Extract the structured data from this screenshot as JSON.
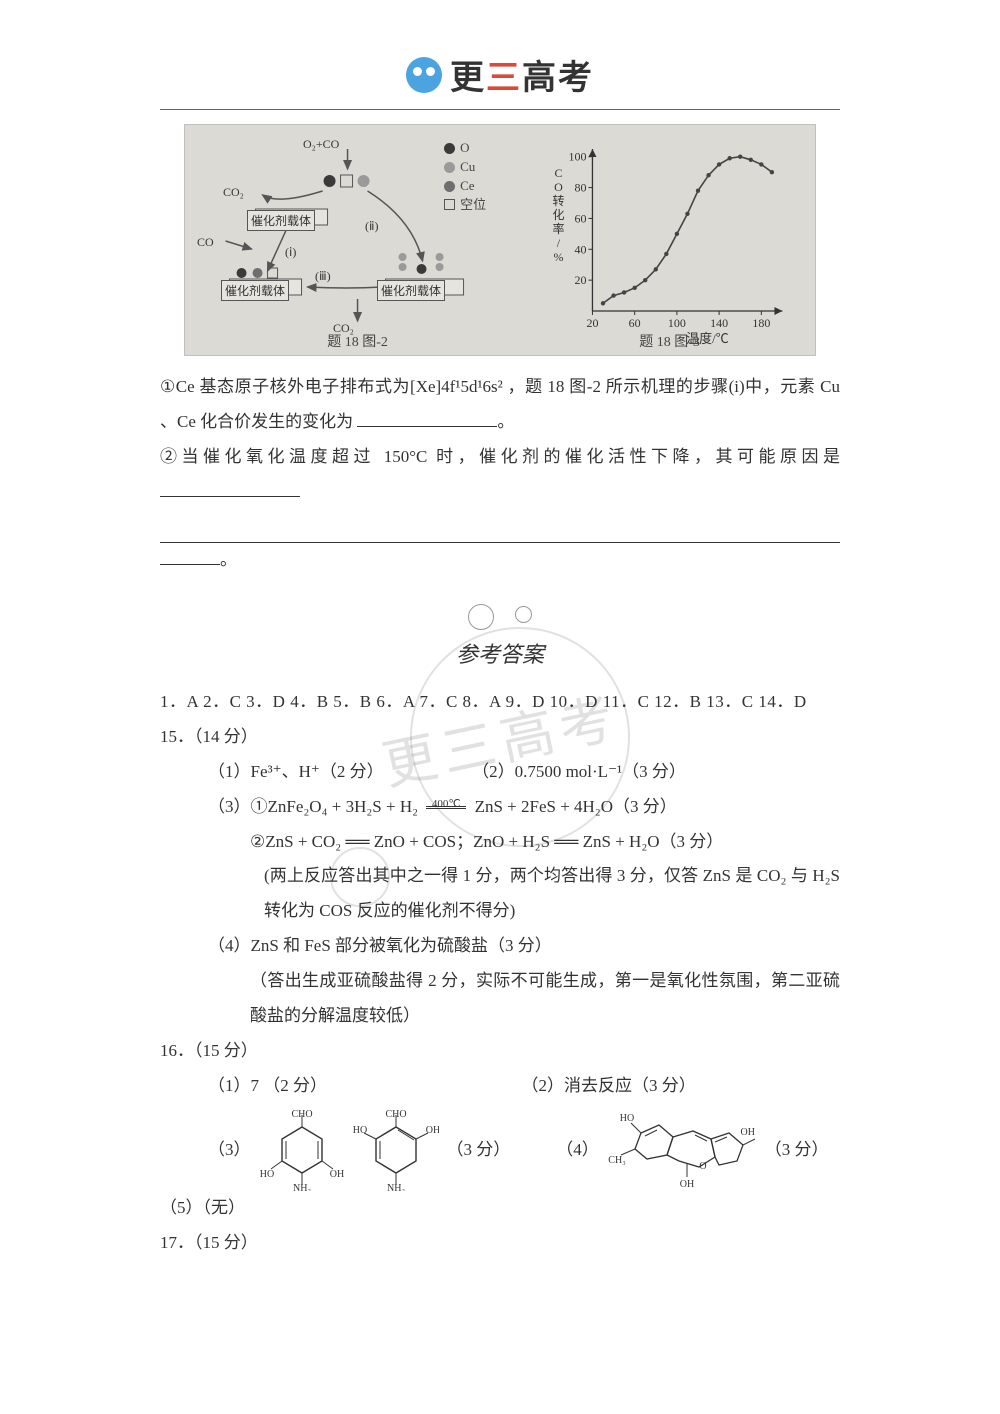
{
  "brand": {
    "text_pre": "更",
    "text_red": "三",
    "text_post": "高考"
  },
  "figure": {
    "left_caption": "题 18  图-2",
    "right_caption": "题 18  图-3",
    "legend": {
      "o": "O",
      "cu": "Cu",
      "ce": "Ce",
      "vac": "空位"
    },
    "labels": {
      "o2co": "O₂+CO",
      "co2_u": "CO₂",
      "co": "CO",
      "co2_b": "CO₂",
      "i": "(ⅰ)",
      "ii": "(ⅱ)",
      "iii": "(ⅲ)",
      "cat": "催化剂载体"
    },
    "chart": {
      "type": "line",
      "ylabel": "CO转化率/%",
      "xlabel": "温度/℃",
      "xlim": [
        20,
        200
      ],
      "ylim": [
        0,
        105
      ],
      "xticks": [
        20,
        60,
        100,
        140,
        180
      ],
      "yticks": [
        20,
        40,
        60,
        80,
        100
      ],
      "points": [
        [
          30,
          5
        ],
        [
          40,
          10
        ],
        [
          50,
          12
        ],
        [
          60,
          15
        ],
        [
          70,
          20
        ],
        [
          80,
          27
        ],
        [
          90,
          37
        ],
        [
          100,
          50
        ],
        [
          110,
          63
        ],
        [
          120,
          78
        ],
        [
          130,
          88
        ],
        [
          140,
          95
        ],
        [
          150,
          99
        ],
        [
          160,
          100
        ],
        [
          170,
          98
        ],
        [
          180,
          95
        ],
        [
          190,
          90
        ]
      ],
      "line_color": "#444444",
      "axis_color": "#333333",
      "background_color": "#dcdad4",
      "fontsize_axis": 12
    }
  },
  "body": {
    "q1": "①Ce 基态原子核外电子排布式为[Xe]4f¹5d¹6s² ，题 18 图-2 所示机理的步骤(i)中，元素 Cu 、Ce 化合价发生的变化为",
    "q1_end": "。",
    "q2a": "②当催化氧化温度超过 150°C 时，催化剂的催化活性下降，其可能原因是",
    "q2_end": "。"
  },
  "answers_title": "参考答案",
  "watermark_text": "更三高考",
  "mc": "1．A  2．C  3．D  4．B  5．B  6．A  7．C  8．A  9．D  10．D  11．C  12．B  13．C  14．D",
  "q15": {
    "head": "15．（14 分）",
    "p1a": "（1）Fe³⁺、H⁺（2 分）",
    "p1b": "（2）0.7500 mol·L⁻¹（3 分）",
    "p3lead": "（3）①ZnFe₂O₄ + 3H₂S + H₂",
    "arrow_top": "400℃",
    "p3rhs": "ZnS + 2FeS + 4H₂O（3 分）",
    "p3_2": "②ZnS + CO₂ ══ ZnO + COS；ZnO + H₂S ══ ZnS + H₂O（3 分）",
    "p3_note": "(两上反应答出其中之一得 1 分，两个均答出得 3 分，仅答 ZnS 是 CO₂ 与 H₂S 转化为 COS 反应的催化剂不得分)",
    "p4": "（4）ZnS 和 FeS 部分被氧化为硫酸盐（3 分）",
    "p4_note": "（答出生成亚硫酸盐得 2 分，实际不可能生成，第一是氧化性氛围，第二亚硫酸盐的分解温度较低）"
  },
  "q16": {
    "head": "16．（15 分）",
    "p1": "（1）7 （2 分）",
    "p2": "（2）消去反应（3 分）",
    "p3_label": "（3）",
    "p3_pts": "（3 分）",
    "p4_label": "（4）",
    "p4_pts": "（3 分）",
    "p5": "（5）（无）",
    "fig3_labels": {
      "cho": "CHO",
      "oh": "OH",
      "ho": "HO",
      "nh2": "NH₂"
    },
    "fig4_labels": {
      "ho": "HO",
      "oh": "OH",
      "ch3": "CH₃",
      "o": "O"
    }
  },
  "q17": {
    "head": "17．（15 分）"
  },
  "colors": {
    "text": "#333333",
    "red": "#d94a3a",
    "figbg": "#dcdad4",
    "wm": "rgba(120,120,120,0.22)"
  }
}
